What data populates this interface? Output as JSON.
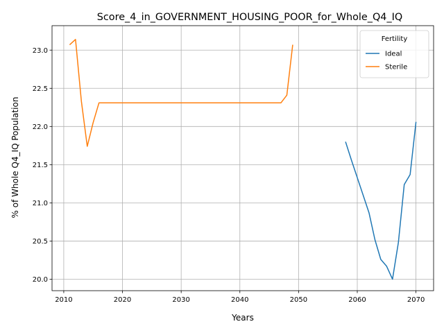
{
  "chart_data": {
    "type": "line",
    "title": "Score_4_in_GOVERNMENT_HOUSING_POOR_for_Whole_Q4_IQ",
    "xlabel": "Years",
    "ylabel": "% of Whole Q4_IQ Population",
    "xlim": [
      2008,
      2073
    ],
    "ylim": [
      19.85,
      23.32
    ],
    "xticks": [
      2010,
      2020,
      2030,
      2040,
      2050,
      2060,
      2070
    ],
    "yticks": [
      20.0,
      20.5,
      21.0,
      21.5,
      22.0,
      22.5,
      23.0
    ],
    "grid": true,
    "legend": {
      "title": "Fertility",
      "position": "top-right"
    },
    "series": [
      {
        "name": "Ideal",
        "color": "#1f77b4",
        "x": [
          2058,
          2059,
          2060,
          2061,
          2062,
          2063,
          2064,
          2065,
          2066,
          2067,
          2068,
          2069,
          2070
        ],
        "y": [
          21.8,
          21.56,
          21.33,
          21.1,
          20.87,
          20.52,
          20.26,
          20.17,
          20.0,
          20.48,
          21.24,
          21.37,
          22.06
        ]
      },
      {
        "name": "Sterile",
        "color": "#ff7f0e",
        "x": [
          2011,
          2012,
          2013,
          2014,
          2015,
          2016,
          2017,
          2018,
          2019,
          2020,
          2021,
          2022,
          2023,
          2024,
          2025,
          2026,
          2027,
          2028,
          2029,
          2030,
          2031,
          2032,
          2033,
          2034,
          2035,
          2036,
          2037,
          2038,
          2039,
          2040,
          2041,
          2042,
          2043,
          2044,
          2045,
          2046,
          2047,
          2048,
          2049
        ],
        "y": [
          23.07,
          23.14,
          22.33,
          21.74,
          22.05,
          22.31,
          22.31,
          22.31,
          22.31,
          22.31,
          22.31,
          22.31,
          22.31,
          22.31,
          22.31,
          22.31,
          22.31,
          22.31,
          22.31,
          22.31,
          22.31,
          22.31,
          22.31,
          22.31,
          22.31,
          22.31,
          22.31,
          22.31,
          22.31,
          22.31,
          22.31,
          22.31,
          22.31,
          22.31,
          22.31,
          22.31,
          22.31,
          22.41,
          23.07
        ]
      }
    ]
  }
}
